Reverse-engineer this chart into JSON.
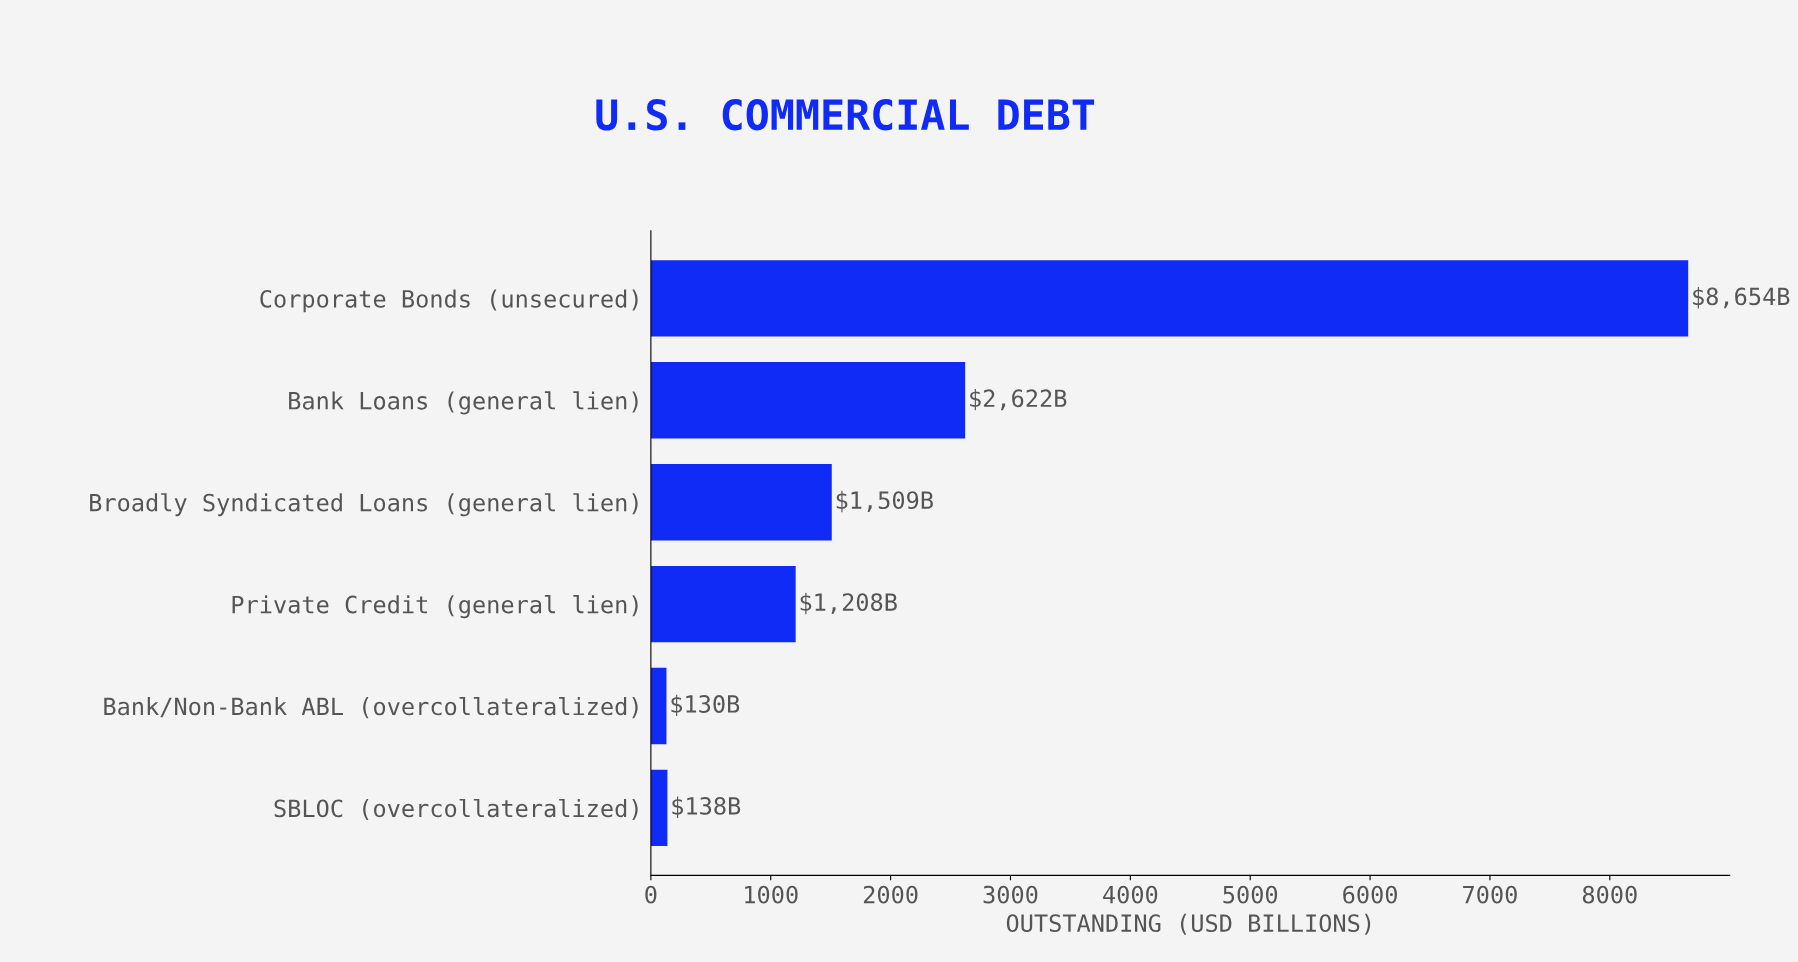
{
  "chart_data": {
    "type": "bar",
    "orientation": "horizontal",
    "title": "U.S. COMMERCIAL DEBT",
    "xlabel": "OUTSTANDING (USD BILLIONS)",
    "categories": [
      "Corporate Bonds (unsecured)",
      "Bank Loans (general lien)",
      "Broadly Syndicated Loans (general lien)",
      "Private Credit (general lien)",
      "Bank/Non-Bank ABL (overcollateralized)",
      "SBLOC (overcollateralized)"
    ],
    "values": [
      8654,
      2622,
      1509,
      1208,
      130,
      138
    ],
    "value_labels": [
      "$8,654B",
      "$2,622B",
      "$1,509B",
      "$1,208B",
      "$130B",
      "$138B"
    ],
    "color": "#0f2bf5",
    "xlim": [
      0,
      9000
    ],
    "xticks": [
      0,
      1000,
      2000,
      3000,
      4000,
      5000,
      6000,
      7000,
      8000
    ],
    "grid": false
  }
}
